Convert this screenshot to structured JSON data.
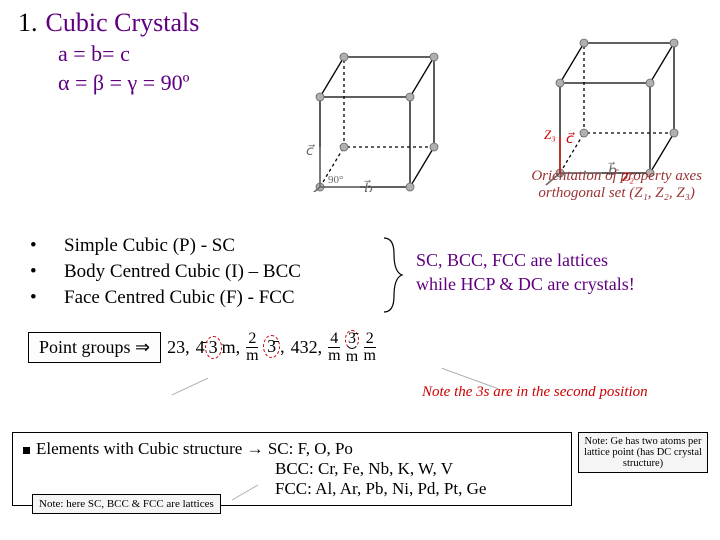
{
  "heading": {
    "number": "1.",
    "title": "Cubic Crystals"
  },
  "params": {
    "line1": "a = b= c",
    "line2": "α = β = γ = 90º"
  },
  "cube_left": {
    "size": 90,
    "depth": 40,
    "stroke": "#000000",
    "vertex_color": "#b0b0b0",
    "vertex_r": 4,
    "vec_color": "#666666",
    "labels": {
      "a": "a⃗",
      "b": "b⃗",
      "c": "c⃗",
      "angle": "90°"
    }
  },
  "cube_right": {
    "size": 90,
    "depth": 40,
    "stroke": "#000000",
    "vertex_color": "#b0b0b0",
    "vertex_r": 4,
    "vec_color": "#666666",
    "labels": {
      "a": "a⃗",
      "b": "b⃗",
      "c": "c⃗",
      "z1": "Z₁",
      "z2": "Z₂",
      "z3": "Z₃"
    },
    "z_color": "#cc0000"
  },
  "orientation": {
    "line1": "Orientation of property axes",
    "line2": "orthogonal set (Z₁, Z₂, Z₃)"
  },
  "bullets": [
    "Simple Cubic (P) - SC",
    "Body Centred Cubic (I) – BCC",
    "Face Centred Cubic (F) - FCC"
  ],
  "sc_note": {
    "line1": "SC, BCC, FCC are lattices",
    "line2": "while HCP & DC are crystals!"
  },
  "pointgroups": {
    "label": "Point groups ⇒",
    "g1": "23,",
    "g2_top": "4̄3m,",
    "g2_circled": "3",
    "g3_top": "2",
    "g3_bot": "m",
    "g3_mid": "3̄",
    "g3_tail": ",",
    "g4": "432,",
    "g5_top": "4",
    "g5_bot": "m",
    "g5_mid_top": "3̄",
    "g5_mid_bot": "m",
    "g5_tail_top": "2",
    "g5_tail_bot": "m"
  },
  "note3s": "Note the 3s are in the second position",
  "elements": {
    "lead": "Elements with Cubic structure → ",
    "sc": "SC: F, O, Po",
    "bcc": "BCC: Cr, Fe, Nb, K, W, V",
    "fcc": "FCC: Al, Ar, Pb, Ni, Pd, Pt, Ge"
  },
  "sub_note": "Note: here SC, BCC & FCC are lattices",
  "ge_note": "Note: Ge has two atoms per lattice point (has DC crystal structure)"
}
